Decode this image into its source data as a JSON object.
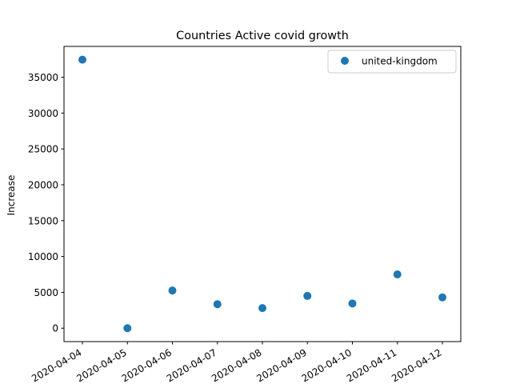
{
  "chart_data": {
    "type": "scatter",
    "title": "Countries Active covid growth",
    "xlabel": "",
    "ylabel": "Increase",
    "x": [
      "2020-04-04",
      "2020-04-05",
      "2020-04-06",
      "2020-04-07",
      "2020-04-08",
      "2020-04-09",
      "2020-04-10",
      "2020-04-11",
      "2020-04-12"
    ],
    "ylim": [
      -1870,
      39300
    ],
    "yticks": [
      0,
      5000,
      10000,
      15000,
      20000,
      25000,
      30000,
      35000
    ],
    "series": [
      {
        "name": "united-kingdom",
        "color": "#1f77b4",
        "values": [
          37450,
          0,
          5250,
          3350,
          2800,
          4500,
          3450,
          7500,
          4300
        ]
      }
    ],
    "legend": "top-right",
    "grid": false
  }
}
